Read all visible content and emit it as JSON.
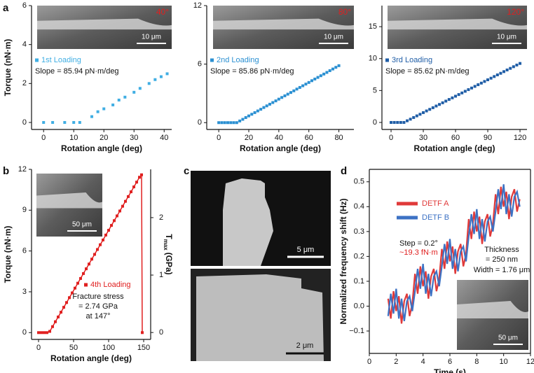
{
  "panel_labels": [
    "a",
    "b",
    "c",
    "d"
  ],
  "images": {
    "top_scale_bar": "5 μm",
    "bottom_scale_bar": "2 μm"
  },
  "chart_data": [
    {
      "type": "scatter",
      "ylabel": "Torque (nN·m)",
      "xlabel": "Rotation angle (deg)",
      "inset_label": "40°",
      "scale_bar": "10 μm",
      "annotation": "Slope = 85.94 pN·m/deg",
      "xlim": [
        -4,
        42.5
      ],
      "xticks": [
        0,
        10,
        20,
        30,
        40
      ],
      "ylim": [
        -0.36,
        6
      ],
      "yticks": [
        0,
        2,
        4,
        6
      ],
      "x": [
        0,
        3,
        7,
        10,
        12,
        16,
        18,
        20,
        23,
        25,
        27,
        30,
        32,
        35,
        37,
        39,
        41
      ],
      "series": [
        {
          "name": "1st Loading",
          "color": "#40aee3",
          "values": [
            0,
            0,
            0,
            0,
            0,
            0.3,
            0.55,
            0.7,
            0.9,
            1.15,
            1.3,
            1.55,
            1.75,
            2.0,
            2.2,
            2.35,
            2.5
          ]
        }
      ]
    },
    {
      "type": "scatter",
      "xlabel": "Rotation angle (deg)",
      "inset_label": "80°",
      "scale_bar": "10 μm",
      "annotation": "Slope = 85.86 pN·m/deg",
      "xlim": [
        -8,
        90
      ],
      "xticks": [
        0,
        20,
        40,
        60,
        80
      ],
      "ylim": [
        -0.7,
        12
      ],
      "yticks": [
        0,
        6,
        12
      ],
      "x": [
        0,
        2,
        4,
        6,
        8,
        10,
        12,
        14,
        16,
        18,
        20,
        22,
        24,
        26,
        28,
        30,
        32,
        34,
        36,
        38,
        40,
        42,
        44,
        46,
        48,
        50,
        52,
        54,
        56,
        58,
        60,
        62,
        64,
        66,
        68,
        70,
        72,
        74,
        76,
        78,
        80
      ],
      "series": [
        {
          "name": "2nd Loading",
          "color": "#2b90d2",
          "values": [
            0,
            0,
            0,
            0,
            0,
            0,
            0,
            0.17,
            0.34,
            0.52,
            0.69,
            0.86,
            1.03,
            1.2,
            1.37,
            1.55,
            1.72,
            1.89,
            2.06,
            2.23,
            2.41,
            2.58,
            2.75,
            2.92,
            3.09,
            3.26,
            3.44,
            3.61,
            3.78,
            3.95,
            4.12,
            4.3,
            4.47,
            4.64,
            4.81,
            4.98,
            5.15,
            5.33,
            5.5,
            5.67,
            5.84
          ]
        }
      ]
    },
    {
      "type": "scatter",
      "xlabel": "Rotation angle (deg)",
      "inset_label": "120°",
      "scale_bar": "10 μm",
      "annotation": "Slope = 85.62 pN·m/deg",
      "xlim": [
        -8.5,
        126.5
      ],
      "xticks": [
        0,
        30,
        60,
        90,
        120
      ],
      "ylim": [
        -1.1,
        18.3
      ],
      "yticks": [
        0,
        5,
        10,
        15
      ],
      "x": [
        0,
        3,
        6,
        9,
        12,
        15,
        18,
        21,
        24,
        27,
        30,
        33,
        36,
        39,
        42,
        45,
        48,
        51,
        54,
        57,
        60,
        63,
        66,
        69,
        72,
        75,
        78,
        81,
        84,
        87,
        90,
        93,
        96,
        99,
        102,
        105,
        108,
        111,
        114,
        117,
        120
      ],
      "series": [
        {
          "name": "3rd Loading",
          "color": "#1f5da6",
          "values": [
            0,
            0,
            0,
            0,
            0,
            0.26,
            0.51,
            0.77,
            1.03,
            1.28,
            1.54,
            1.8,
            2.05,
            2.31,
            2.57,
            2.82,
            3.08,
            3.34,
            3.6,
            3.85,
            4.11,
            4.37,
            4.62,
            4.88,
            5.14,
            5.39,
            5.65,
            5.91,
            6.16,
            6.42,
            6.68,
            6.93,
            7.19,
            7.45,
            7.7,
            7.96,
            8.22,
            8.47,
            8.73,
            8.99,
            9.24
          ]
        }
      ]
    },
    {
      "type": "scatter",
      "ylabel": "Torque (nN·m)",
      "xlabel": "Rotation angle (deg)",
      "y2label_base": "T",
      "y2label_sub": "max",
      "y2label_unit": "(GPa)",
      "scale_bar": "50 μm",
      "annotations": [
        "Fracture stress",
        "= 2.74 GPa",
        "at 147°"
      ],
      "xlim": [
        -10,
        160
      ],
      "xticks": [
        0,
        50,
        100,
        150
      ],
      "ylim": [
        -0.5,
        12
      ],
      "yticks": [
        0,
        3,
        6,
        9,
        12
      ],
      "y2lim": [
        -0.12,
        2.84
      ],
      "y2ticks": [
        0,
        1,
        2
      ],
      "x": [
        0,
        4,
        8,
        12,
        16,
        20,
        24,
        28,
        32,
        36,
        40,
        44,
        48,
        52,
        56,
        60,
        64,
        68,
        72,
        76,
        80,
        84,
        88,
        92,
        96,
        100,
        104,
        108,
        112,
        116,
        120,
        124,
        128,
        132,
        136,
        140,
        144,
        147,
        148
      ],
      "series": [
        {
          "name": "4th Loading",
          "color": "#e02020",
          "values": [
            0,
            0,
            0,
            0,
            0.09,
            0.44,
            0.8,
            1.15,
            1.5,
            1.86,
            2.21,
            2.57,
            2.92,
            3.27,
            3.63,
            3.98,
            4.34,
            4.69,
            5.04,
            5.4,
            5.75,
            6.11,
            6.46,
            6.81,
            7.17,
            7.52,
            7.88,
            8.23,
            8.58,
            8.94,
            9.29,
            9.65,
            10.0,
            10.35,
            10.71,
            11.06,
            11.42,
            11.6,
            0
          ]
        }
      ]
    },
    {
      "type": "line",
      "ylabel": "Normalized frequency shift (Hz)",
      "xlabel": "Time (s)",
      "scale_bar": "50 μm",
      "annotations": [
        {
          "text": "Step = 0.2°",
          "color": "#111111"
        },
        {
          "text": "~19.3 fN·m",
          "color": "#e02020"
        },
        {
          "text": "Thickness",
          "color": "#111111"
        },
        {
          "text": "= 250 nm",
          "color": "#111111"
        },
        {
          "text": "Width = 1.76 μm",
          "color": "#111111"
        }
      ],
      "xlim": [
        0,
        12
      ],
      "xticks": [
        0,
        2,
        4,
        6,
        8,
        10,
        12
      ],
      "ylim": [
        -0.19,
        0.55
      ],
      "yticks": [
        {
          "value": -0.1,
          "label": "−0.1"
        },
        {
          "value": 0,
          "label": "0.0"
        },
        0.1,
        0.2,
        0.3,
        0.4,
        0.5
      ],
      "x": [
        1.4,
        1.6,
        1.8,
        2.0,
        2.2,
        2.4,
        2.6,
        2.8,
        3.0,
        3.2,
        3.4,
        3.6,
        3.8,
        4.0,
        4.2,
        4.4,
        4.6,
        4.8,
        5.0,
        5.2,
        5.4,
        5.6,
        5.8,
        6.0,
        6.2,
        6.4,
        6.6,
        6.8,
        7.0,
        7.2,
        7.4,
        7.6,
        7.8,
        8.0,
        8.2,
        8.4,
        8.6,
        8.8,
        9.0,
        9.2,
        9.4,
        9.6,
        9.8,
        10.0,
        10.2,
        10.4,
        10.6,
        10.8,
        11.0,
        11.2
      ],
      "series": [
        {
          "name": "DETF A",
          "color": "#e03a3a",
          "values": [
            0.03,
            -0.05,
            0.06,
            -0.02,
            0.04,
            -0.07,
            0.02,
            0.05,
            -0.04,
            0.01,
            0.13,
            0.05,
            0.16,
            0.08,
            0.14,
            0.03,
            0.12,
            0.15,
            0.06,
            0.11,
            0.23,
            0.15,
            0.26,
            0.18,
            0.24,
            0.13,
            0.22,
            0.25,
            0.16,
            0.21,
            0.35,
            0.27,
            0.38,
            0.3,
            0.36,
            0.25,
            0.34,
            0.37,
            0.28,
            0.33,
            0.45,
            0.37,
            0.48,
            0.4,
            0.46,
            0.35,
            0.44,
            0.47,
            0.38,
            0.43
          ]
        },
        {
          "name": "DETF B",
          "color": "#3d72c4",
          "values": [
            -0.04,
            0.05,
            -0.03,
            0.07,
            -0.05,
            0.03,
            -0.06,
            0.02,
            0.04,
            -0.02,
            0.06,
            0.15,
            0.07,
            0.17,
            0.05,
            0.13,
            0.04,
            0.12,
            0.14,
            0.08,
            0.16,
            0.25,
            0.17,
            0.27,
            0.15,
            0.23,
            0.14,
            0.22,
            0.24,
            0.18,
            0.28,
            0.37,
            0.29,
            0.39,
            0.27,
            0.35,
            0.26,
            0.34,
            0.36,
            0.3,
            0.38,
            0.47,
            0.39,
            0.49,
            0.37,
            0.45,
            0.36,
            0.44,
            0.46,
            0.4
          ]
        }
      ]
    }
  ]
}
